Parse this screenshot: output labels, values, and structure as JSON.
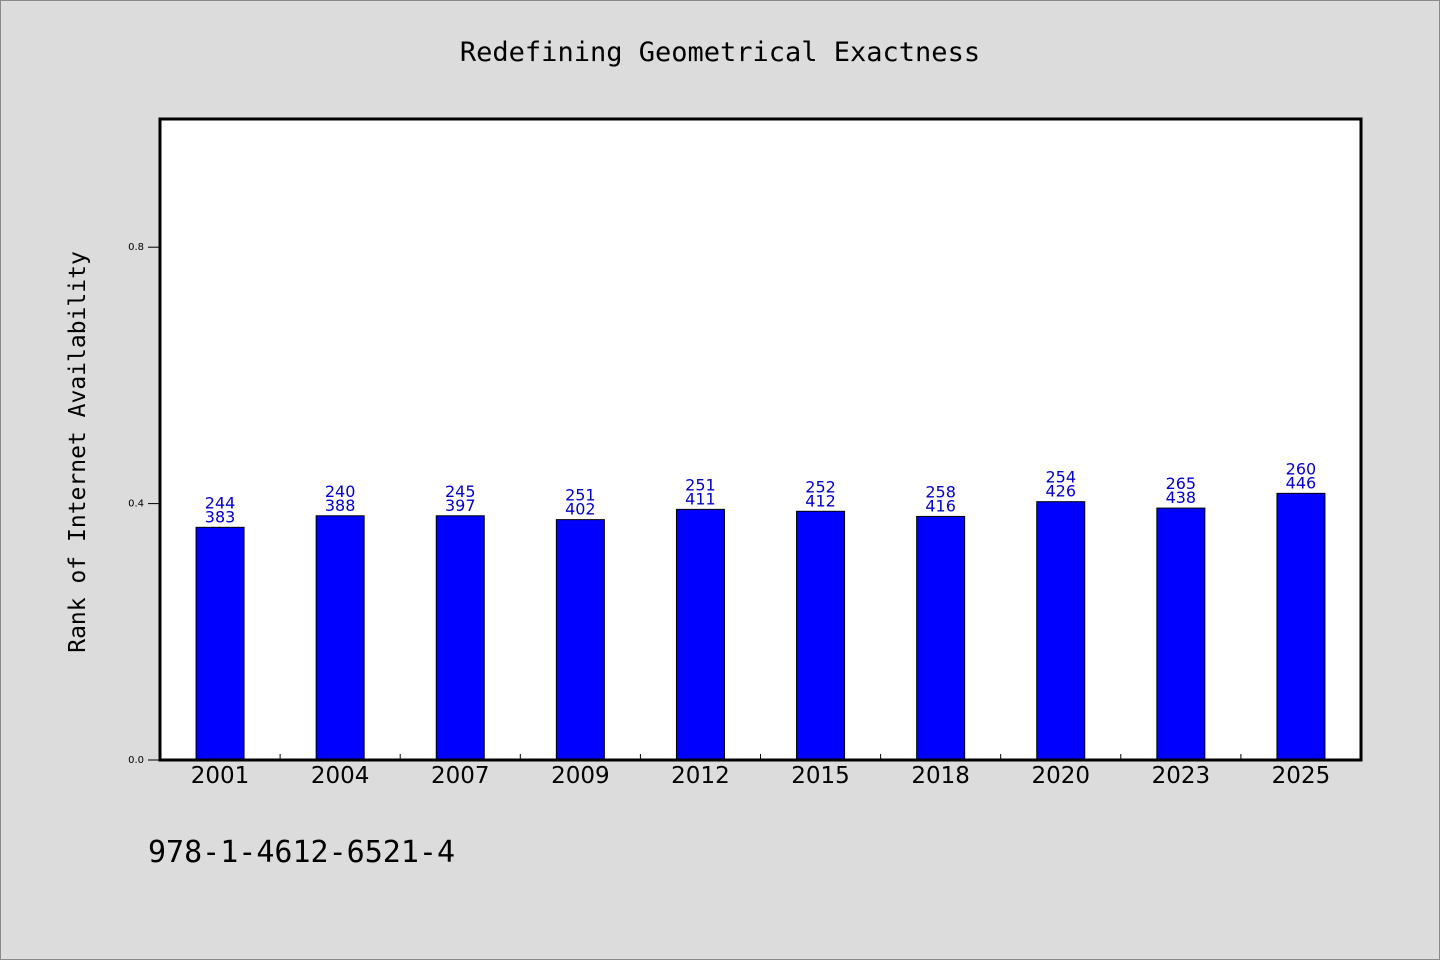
{
  "chart_data": {
    "type": "bar",
    "title": "Redefining Geometrical Exactness",
    "ylabel": "Rank of Internet Availability",
    "xlabel": "",
    "ylim": [
      0,
      1.0
    ],
    "yticks": [
      "0.0",
      "0.4",
      "0.8"
    ],
    "ytick_values": [
      0.0,
      0.4,
      0.8
    ],
    "categories": [
      "2001",
      "2004",
      "2007",
      "2009",
      "2012",
      "2015",
      "2018",
      "2020",
      "2023",
      "2025"
    ],
    "values": [
      0.363,
      0.381,
      0.381,
      0.375,
      0.391,
      0.388,
      0.38,
      0.403,
      0.393,
      0.416
    ],
    "label_top": [
      "244",
      "240",
      "245",
      "251",
      "251",
      "252",
      "258",
      "254",
      "265",
      "260"
    ],
    "label_bottom": [
      "383",
      "388",
      "397",
      "402",
      "411",
      "412",
      "416",
      "426",
      "438",
      "446"
    ],
    "bar_color": "#0000ff",
    "label_color": "#0000cc",
    "grid": false,
    "legend": "none"
  },
  "footer": {
    "isbn": "978-1-4612-6521-4"
  }
}
